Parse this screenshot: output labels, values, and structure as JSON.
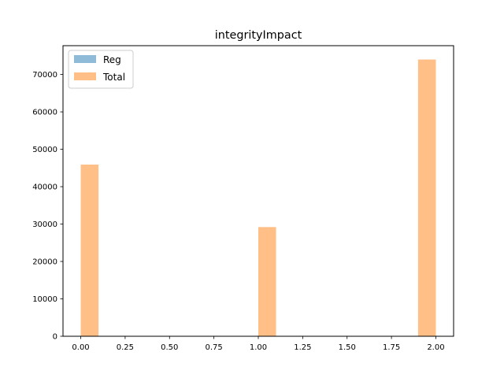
{
  "chart_data": {
    "type": "bar",
    "title": "integrityImpact",
    "xlabel": "",
    "ylabel": "",
    "xlim": [
      -0.1,
      2.1
    ],
    "ylim": [
      0,
      77700
    ],
    "x_ticks": [
      "0.00",
      "0.25",
      "0.50",
      "0.75",
      "1.00",
      "1.25",
      "1.50",
      "1.75",
      "2.00"
    ],
    "y_ticks": [
      "0",
      "10000",
      "20000",
      "30000",
      "40000",
      "50000",
      "60000",
      "70000"
    ],
    "legend_position": "upper-left",
    "grid": false,
    "series": [
      {
        "name": "Reg",
        "color": "#1f77b4",
        "opacity": 0.5,
        "bars": []
      },
      {
        "name": "Total",
        "color": "#ff7f0e",
        "opacity": 0.5,
        "bars": [
          {
            "x0": 0.0,
            "x1": 0.1,
            "value": 45900
          },
          {
            "x0": 1.0,
            "x1": 1.1,
            "value": 29200
          },
          {
            "x0": 1.9,
            "x1": 2.0,
            "value": 74000
          }
        ]
      }
    ]
  }
}
